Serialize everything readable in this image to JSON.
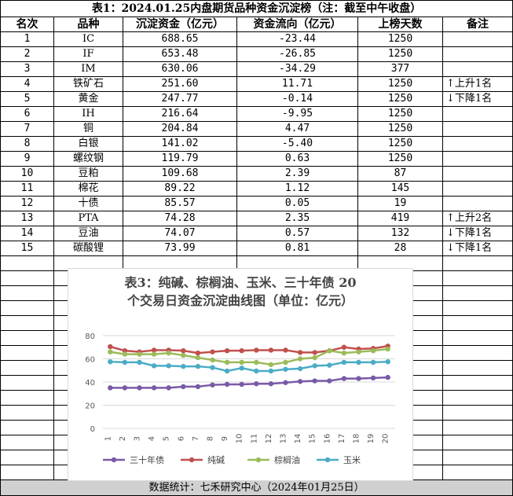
{
  "table": {
    "title": "表1：2024.01.25内盘期货品种资金沉淀榜（注：截至中午收盘）",
    "headers": [
      "名次",
      "品种",
      "沉淀资金（亿元）",
      "资金流向（亿元）",
      "上榜天数",
      "备注"
    ],
    "rows": [
      {
        "rank": "1",
        "name": "IC",
        "capital": "688.65",
        "flow": "-23.44",
        "days": "1250",
        "note": ""
      },
      {
        "rank": "2",
        "name": "IF",
        "capital": "653.48",
        "flow": "-26.85",
        "days": "1250",
        "note": ""
      },
      {
        "rank": "3",
        "name": "IM",
        "capital": "630.06",
        "flow": "-34.29",
        "days": "377",
        "note": ""
      },
      {
        "rank": "4",
        "name": "铁矿石",
        "capital": "251.60",
        "flow": "11.71",
        "days": "1250",
        "note": "↑上升1名"
      },
      {
        "rank": "5",
        "name": "黄金",
        "capital": "247.77",
        "flow": "-0.14",
        "days": "1250",
        "note": "↓下降1名"
      },
      {
        "rank": "6",
        "name": "IH",
        "capital": "216.64",
        "flow": "-9.95",
        "days": "1250",
        "note": ""
      },
      {
        "rank": "7",
        "name": "铜",
        "capital": "204.84",
        "flow": "4.47",
        "days": "1250",
        "note": ""
      },
      {
        "rank": "8",
        "name": "白银",
        "capital": "141.02",
        "flow": "-5.40",
        "days": "1250",
        "note": ""
      },
      {
        "rank": "9",
        "name": "螺纹钢",
        "capital": "119.79",
        "flow": "0.63",
        "days": "1250",
        "note": ""
      },
      {
        "rank": "10",
        "name": "豆粕",
        "capital": "109.68",
        "flow": "2.39",
        "days": "87",
        "note": ""
      },
      {
        "rank": "11",
        "name": "棉花",
        "capital": "89.22",
        "flow": "1.12",
        "days": "145",
        "note": ""
      },
      {
        "rank": "12",
        "name": "十债",
        "capital": "85.57",
        "flow": "0.05",
        "days": "19",
        "note": ""
      },
      {
        "rank": "13",
        "name": "PTA",
        "capital": "74.28",
        "flow": "2.35",
        "days": "419",
        "note": "↑上升2名"
      },
      {
        "rank": "14",
        "name": "豆油",
        "capital": "74.07",
        "flow": "0.57",
        "days": "132",
        "note": "↓下降1名"
      },
      {
        "rank": "15",
        "name": "碳酸锂",
        "capital": "73.99",
        "flow": "0.81",
        "days": "28",
        "note": "↓下降1名"
      }
    ],
    "footer": "数据统计：七禾研究中心（2024年01月25日）"
  },
  "chart_data": {
    "type": "line",
    "title_line1": "表3：纯碱、棕榈油、玉米、三十年债 20",
    "title_line2": "个交易日资金沉淀曲线图（单位：亿元）",
    "x": [
      "1",
      "2",
      "3",
      "4",
      "5",
      "6",
      "7",
      "8",
      "9",
      "10",
      "11",
      "12",
      "13",
      "14",
      "15",
      "16",
      "17",
      "18",
      "19",
      "20"
    ],
    "ylim": [
      0,
      80
    ],
    "yticks": [
      0,
      20,
      40,
      60,
      80
    ],
    "grid": true,
    "legend_position": "bottom",
    "series": [
      {
        "name": "三十年债",
        "color": "#7a5aa6",
        "values": [
          35,
          35,
          35,
          35,
          35,
          36,
          36,
          37.5,
          38,
          38,
          38.5,
          38.5,
          39.5,
          40.5,
          41,
          41,
          43,
          43,
          43.5,
          44
        ]
      },
      {
        "name": "纯碱",
        "color": "#c0504d",
        "values": [
          70.5,
          67,
          66,
          67.5,
          67.5,
          67,
          65,
          66,
          67,
          67,
          67.5,
          67.5,
          67.5,
          65.5,
          65.5,
          67,
          70,
          68.5,
          69,
          71
        ]
      },
      {
        "name": "棕榈油",
        "color": "#9bbb59",
        "values": [
          66,
          64,
          64,
          64,
          65,
          63,
          61,
          59,
          57,
          57,
          57,
          55,
          57,
          60,
          61,
          67,
          65,
          66,
          67,
          68.5
        ]
      },
      {
        "name": "玉米",
        "color": "#4bacc6",
        "values": [
          57.5,
          57,
          57,
          54,
          54,
          53.5,
          53.5,
          52.5,
          49.5,
          52,
          49.5,
          49.5,
          51,
          51.5,
          54,
          54.5,
          57,
          57,
          57,
          57.5
        ]
      }
    ]
  }
}
